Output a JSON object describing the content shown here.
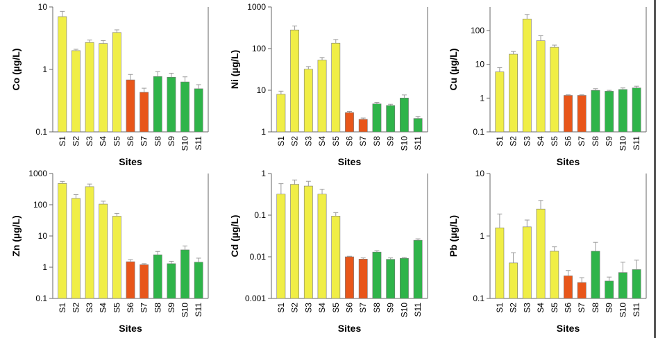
{
  "figure": {
    "colors": {
      "upstream": "#f0ee46",
      "middle": "#e8561a",
      "downstream": "#2fb44a",
      "error": "#9a9a9a",
      "axis": "#666666",
      "right_bar": "#555555"
    }
  },
  "chart_data": [
    {
      "type": "bar",
      "ylabel": "Co (µg/L)",
      "xlabel": "Sites",
      "scale": "log",
      "ylim": [
        0.1,
        10
      ],
      "yticks": [
        {
          "v": 0.1,
          "label": "0.1"
        },
        {
          "v": 1,
          "label": "1"
        },
        {
          "v": 10,
          "label": "10"
        }
      ],
      "categories": [
        "S1",
        "S2",
        "S3",
        "S4",
        "S5",
        "S6",
        "S7",
        "S8",
        "S9",
        "S10",
        "S11"
      ],
      "values": [
        7.0,
        2.0,
        2.7,
        2.6,
        3.9,
        0.68,
        0.43,
        0.77,
        0.75,
        0.63,
        0.49
      ],
      "errors": [
        1.5,
        0.1,
        0.25,
        0.3,
        0.4,
        0.15,
        0.07,
        0.15,
        0.12,
        0.13,
        0.08
      ]
    },
    {
      "type": "bar",
      "ylabel": "Ni (µg/L)",
      "xlabel": "Sites",
      "scale": "log",
      "ylim": [
        1,
        1000
      ],
      "yticks": [
        {
          "v": 1,
          "label": "1"
        },
        {
          "v": 10,
          "label": "10"
        },
        {
          "v": 100,
          "label": "100"
        },
        {
          "v": 1000,
          "label": "1000"
        }
      ],
      "categories": [
        "S1",
        "S2",
        "S3",
        "S4",
        "S5",
        "S6",
        "S7",
        "S8",
        "S9",
        "S10",
        "S11"
      ],
      "values": [
        8,
        280,
        32,
        53,
        135,
        2.9,
        2.0,
        4.7,
        4.3,
        6.5,
        2.1
      ],
      "errors": [
        1.5,
        70,
        5,
        8,
        30,
        0.2,
        0.15,
        0.4,
        0.3,
        1.2,
        0.25
      ]
    },
    {
      "type": "bar",
      "ylabel": "Cu (µg/L)",
      "xlabel": "Sites",
      "scale": "log",
      "ylim": [
        0.1,
        500
      ],
      "yticks": [
        {
          "v": 0.1,
          "label": "0.1"
        },
        {
          "v": 1,
          "label": "1"
        },
        {
          "v": 10,
          "label": "10"
        },
        {
          "v": 100,
          "label": "100"
        }
      ],
      "categories": [
        "S1",
        "S2",
        "S3",
        "S4",
        "S5",
        "S6",
        "S7",
        "S8",
        "S9",
        "S10",
        "S11"
      ],
      "values": [
        6,
        20,
        220,
        50,
        32,
        1.2,
        1.2,
        1.7,
        1.6,
        1.8,
        2.0
      ],
      "errors": [
        2,
        4,
        80,
        20,
        5,
        0.05,
        0.05,
        0.2,
        0.1,
        0.2,
        0.25
      ]
    },
    {
      "type": "bar",
      "ylabel": "Zn (µg/L)",
      "xlabel": "Sites",
      "scale": "log",
      "ylim": [
        0.1,
        1000
      ],
      "yticks": [
        {
          "v": 0.1,
          "label": "0.1"
        },
        {
          "v": 1,
          "label": "1"
        },
        {
          "v": 10,
          "label": "10"
        },
        {
          "v": 100,
          "label": "100"
        },
        {
          "v": 1000,
          "label": "1000"
        }
      ],
      "categories": [
        "S1",
        "S2",
        "S3",
        "S4",
        "S5",
        "S6",
        "S7",
        "S8",
        "S9",
        "S10",
        "S11"
      ],
      "values": [
        480,
        160,
        380,
        105,
        43,
        1.5,
        1.2,
        2.5,
        1.3,
        3.6,
        1.45
      ],
      "errors": [
        80,
        50,
        80,
        25,
        10,
        0.25,
        0.1,
        0.7,
        0.25,
        1.2,
        0.5
      ]
    },
    {
      "type": "bar",
      "ylabel": "Cd (µg/L)",
      "xlabel": "Sites",
      "scale": "log",
      "ylim": [
        0.001,
        1
      ],
      "yticks": [
        {
          "v": 0.001,
          "label": "0.001"
        },
        {
          "v": 0.01,
          "label": "0.01"
        },
        {
          "v": 0.1,
          "label": "0.1"
        },
        {
          "v": 1,
          "label": "1"
        }
      ],
      "categories": [
        "S1",
        "S2",
        "S3",
        "S4",
        "S5",
        "S6",
        "S7",
        "S8",
        "S9",
        "S10",
        "S11"
      ],
      "values": [
        0.32,
        0.55,
        0.5,
        0.32,
        0.095,
        0.01,
        0.0088,
        0.013,
        0.0087,
        0.0092,
        0.025
      ],
      "errors": [
        0.25,
        0.15,
        0.15,
        0.1,
        0.02,
        0.0003,
        0.0006,
        0.001,
        0.0007,
        0.0004,
        0.002
      ]
    },
    {
      "type": "bar",
      "ylabel": "Pb (µg/L)",
      "xlabel": "Sites",
      "scale": "log",
      "ylim": [
        0.1,
        10
      ],
      "yticks": [
        {
          "v": 0.1,
          "label": "0.1"
        },
        {
          "v": 1,
          "label": "1"
        },
        {
          "v": 10,
          "label": "10"
        }
      ],
      "categories": [
        "S1",
        "S2",
        "S3",
        "S4",
        "S5",
        "S6",
        "S7",
        "S8",
        "S9",
        "S10",
        "S11"
      ],
      "values": [
        1.35,
        0.37,
        1.4,
        2.7,
        0.57,
        0.23,
        0.18,
        0.57,
        0.19,
        0.26,
        0.29
      ],
      "errors": [
        0.9,
        0.17,
        0.4,
        1.0,
        0.1,
        0.05,
        0.035,
        0.22,
        0.03,
        0.12,
        0.12
      ]
    }
  ]
}
